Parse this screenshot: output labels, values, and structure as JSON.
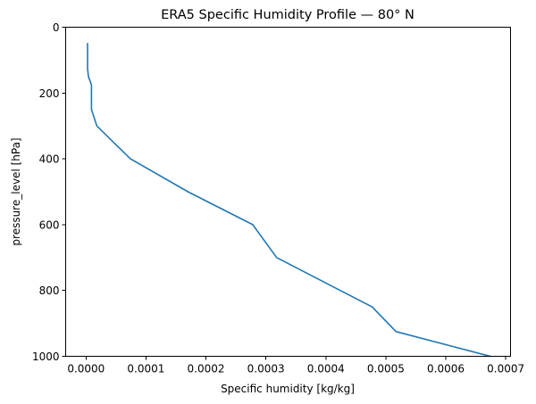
{
  "chart_data": {
    "type": "line",
    "title": "ERA5 Specific Humidity Profile — 80° N",
    "xlabel": "Specific humidity [kg/kg]",
    "ylabel": "pressure_level [hPa]",
    "xlim": [
      -3.4e-05,
      0.000708
    ],
    "ylim": [
      1000,
      0
    ],
    "y_inverted": true,
    "grid": false,
    "xticks": [
      0,
      0.0001,
      0.0002,
      0.0003,
      0.0004,
      0.0005,
      0.0006,
      0.0007
    ],
    "xtick_labels": [
      "0.0000",
      "0.0001",
      "0.0002",
      "0.0003",
      "0.0004",
      "0.0005",
      "0.0006",
      "0.0007"
    ],
    "yticks": [
      0,
      200,
      400,
      600,
      800,
      1000
    ],
    "ytick_labels": [
      "0",
      "200",
      "400",
      "600",
      "800",
      "1000"
    ],
    "series": [
      {
        "color": "#1f77b4",
        "x": [
          2.5e-06,
          2.5e-06,
          2.5e-06,
          2.5e-06,
          4e-06,
          9e-06,
          9e-06,
          9e-06,
          1.8e-05,
          7.4e-05,
          0.00017,
          0.000278,
          0.000318,
          0.000477,
          0.000517,
          0.000674
        ],
        "y": [
          50,
          70,
          100,
          125,
          150,
          175,
          200,
          250,
          300,
          400,
          500,
          600,
          700,
          850,
          925,
          1000
        ]
      }
    ]
  }
}
